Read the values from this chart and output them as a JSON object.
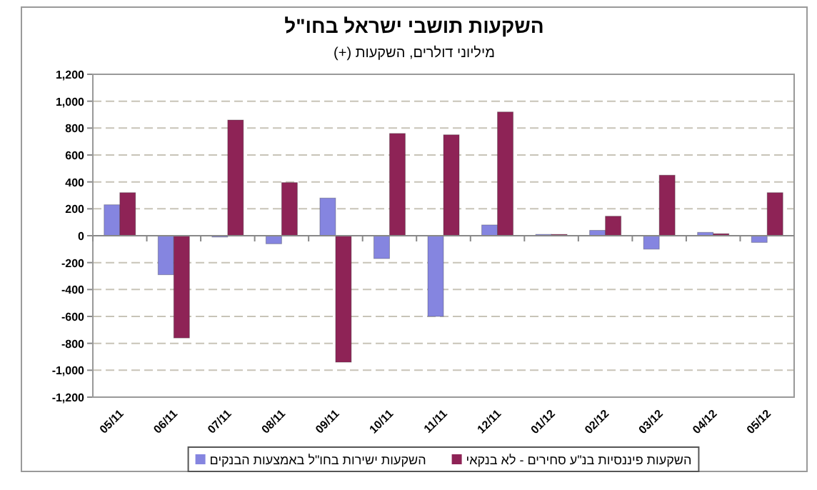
{
  "chart_data": {
    "type": "bar",
    "title": "השקעות תושבי ישראל בחו\"ל",
    "subtitle": "מיליוני דולרים, השקעות (+)",
    "categories": [
      "05/11",
      "06/11",
      "07/11",
      "08/11",
      "09/11",
      "10/11",
      "11/11",
      "12/11",
      "01/12",
      "02/12",
      "03/12",
      "04/12",
      "05/12"
    ],
    "series": [
      {
        "name": "השקעות ישירות בחו\"ל באמצעות הבנקים",
        "color": "#8585e0",
        "values": [
          230,
          -290,
          -10,
          -60,
          280,
          -170,
          -600,
          80,
          10,
          40,
          -100,
          25,
          -50
        ]
      },
      {
        "name": "השקעות פיננסיות בנ\"ע סחירים - לא בנקאי",
        "color": "#8e2356",
        "values": [
          320,
          -760,
          860,
          395,
          -940,
          760,
          750,
          920,
          10,
          145,
          450,
          15,
          320
        ]
      }
    ],
    "ylim": [
      -1200,
      1200
    ],
    "yticks": [
      {
        "value": -1200,
        "label": "-1,200"
      },
      {
        "value": -1000,
        "label": "-1,000"
      },
      -800,
      -600,
      -400,
      -200,
      0,
      200,
      400,
      600,
      800,
      {
        "value": 1000,
        "label": "1,000"
      },
      {
        "value": 1200,
        "label": "1,200"
      }
    ],
    "grid": "y",
    "legend": "bottom"
  }
}
